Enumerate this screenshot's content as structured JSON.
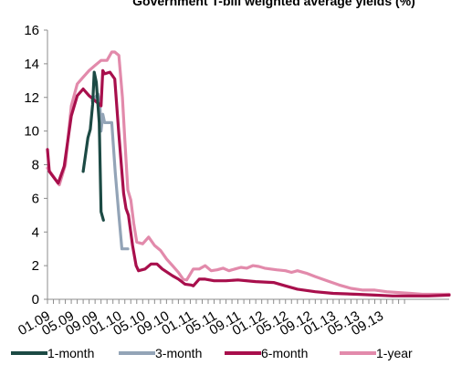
{
  "chart_data": {
    "type": "line",
    "title": "Government T-bill weighted average yields (%)",
    "xlabel": "",
    "ylabel": "",
    "x_tick_labels": [
      "01.09",
      "05.09",
      "09.09",
      "01.10",
      "05.10",
      "09.10",
      "01.11",
      "05.11",
      "09.11",
      "01.12",
      "05.12",
      "09.12",
      "01.13",
      "05.13",
      "09.13"
    ],
    "ylim": [
      0,
      16
    ],
    "y_ticks": [
      0,
      2,
      4,
      6,
      8,
      10,
      12,
      14,
      16
    ],
    "grid": false,
    "legend_position": "bottom",
    "series": [
      {
        "name": "1-month",
        "color": "#1c4a44",
        "points": [
          [
            6.0,
            7.6
          ],
          [
            6.8,
            9.6
          ],
          [
            7.2,
            10.1
          ],
          [
            7.6,
            11.6
          ],
          [
            7.85,
            13.5
          ],
          [
            8.2,
            12.9
          ],
          [
            8.7,
            10.5
          ],
          [
            9.0,
            5.2
          ],
          [
            9.4,
            4.7
          ]
        ]
      },
      {
        "name": "3-month",
        "color": "#93a4b7",
        "points": [
          [
            7.5,
            11.8
          ],
          [
            8.0,
            12.0
          ],
          [
            8.5,
            12.2
          ],
          [
            8.8,
            11.6
          ],
          [
            9.0,
            10.0
          ],
          [
            9.3,
            11.0
          ],
          [
            9.6,
            10.5
          ],
          [
            10.8,
            10.5
          ],
          [
            11.4,
            7.5
          ],
          [
            12.0,
            5.0
          ],
          [
            12.5,
            3.0
          ],
          [
            13.5,
            3.0
          ]
        ]
      },
      {
        "name": "6-month",
        "color": "#a80f4c",
        "points": [
          [
            0,
            8.9
          ],
          [
            0.3,
            7.6
          ],
          [
            1.8,
            6.9
          ],
          [
            2.8,
            7.9
          ],
          [
            4.0,
            10.9
          ],
          [
            5.0,
            12.1
          ],
          [
            6.0,
            12.5
          ],
          [
            7.0,
            12.1
          ],
          [
            8.0,
            11.8
          ],
          [
            9.0,
            11.5
          ],
          [
            9.3,
            13.6
          ],
          [
            9.6,
            13.4
          ],
          [
            10.5,
            13.5
          ],
          [
            11.3,
            13.1
          ],
          [
            12.0,
            9.8
          ],
          [
            12.8,
            6.3
          ],
          [
            13.2,
            5.4
          ],
          [
            13.6,
            5.0
          ],
          [
            14.3,
            3.2
          ],
          [
            14.9,
            2.0
          ],
          [
            15.3,
            1.7
          ],
          [
            16.4,
            1.8
          ],
          [
            17.4,
            2.1
          ],
          [
            18.4,
            2.1
          ],
          [
            19.3,
            1.8
          ],
          [
            21.0,
            1.4
          ],
          [
            22.0,
            1.2
          ],
          [
            23.1,
            0.9
          ],
          [
            24.1,
            0.85
          ],
          [
            24.5,
            0.8
          ],
          [
            25.5,
            1.2
          ],
          [
            26.5,
            1.2
          ],
          [
            28.0,
            1.1
          ],
          [
            30.0,
            1.1
          ],
          [
            32.0,
            1.15
          ],
          [
            35.0,
            1.05
          ],
          [
            38.0,
            1.0
          ],
          [
            40.0,
            0.8
          ],
          [
            42.0,
            0.6
          ],
          [
            45.0,
            0.45
          ],
          [
            48.0,
            0.35
          ],
          [
            52.0,
            0.3
          ],
          [
            55.0,
            0.25
          ],
          [
            58.0,
            0.2
          ],
          [
            61.0,
            0.2
          ],
          [
            64.0,
            0.2
          ],
          [
            67.5,
            0.25
          ]
        ]
      },
      {
        "name": "1-year",
        "color": "#e28aab",
        "points": [
          [
            0,
            7.8
          ],
          [
            2.0,
            6.8
          ],
          [
            3.0,
            8.0
          ],
          [
            4.0,
            11.5
          ],
          [
            5.0,
            12.8
          ],
          [
            6.0,
            13.2
          ],
          [
            7.0,
            13.6
          ],
          [
            8.0,
            13.9
          ],
          [
            9.0,
            14.2
          ],
          [
            10.0,
            14.2
          ],
          [
            10.8,
            14.7
          ],
          [
            11.3,
            14.7
          ],
          [
            12.0,
            14.5
          ],
          [
            12.6,
            12.0
          ],
          [
            13.0,
            9.5
          ],
          [
            13.5,
            6.5
          ],
          [
            14.0,
            5.9
          ],
          [
            14.5,
            4.5
          ],
          [
            15.0,
            3.4
          ],
          [
            16.0,
            3.3
          ],
          [
            17.0,
            3.7
          ],
          [
            18.0,
            3.2
          ],
          [
            19.0,
            2.9
          ],
          [
            20.0,
            2.4
          ],
          [
            21.0,
            2.0
          ],
          [
            22.0,
            1.6
          ],
          [
            22.8,
            1.2
          ],
          [
            23.4,
            1.15
          ],
          [
            24.5,
            1.8
          ],
          [
            25.5,
            1.8
          ],
          [
            26.5,
            2.0
          ],
          [
            27.5,
            1.7
          ],
          [
            28.5,
            1.75
          ],
          [
            29.5,
            1.85
          ],
          [
            30.5,
            1.7
          ],
          [
            31.5,
            1.8
          ],
          [
            32.5,
            1.9
          ],
          [
            33.5,
            1.85
          ],
          [
            34.5,
            2.0
          ],
          [
            35.5,
            1.95
          ],
          [
            36.5,
            1.85
          ],
          [
            37.5,
            1.8
          ],
          [
            38.5,
            1.75
          ],
          [
            40.0,
            1.7
          ],
          [
            41.0,
            1.6
          ],
          [
            42.0,
            1.7
          ],
          [
            43.5,
            1.55
          ],
          [
            45.0,
            1.35
          ],
          [
            47.0,
            1.1
          ],
          [
            49.0,
            0.85
          ],
          [
            51.0,
            0.65
          ],
          [
            53.0,
            0.55
          ],
          [
            55.0,
            0.55
          ],
          [
            57.0,
            0.45
          ],
          [
            59.0,
            0.4
          ],
          [
            61.0,
            0.35
          ],
          [
            63.0,
            0.3
          ],
          [
            65.0,
            0.3
          ],
          [
            67.5,
            0.3
          ]
        ]
      }
    ]
  }
}
